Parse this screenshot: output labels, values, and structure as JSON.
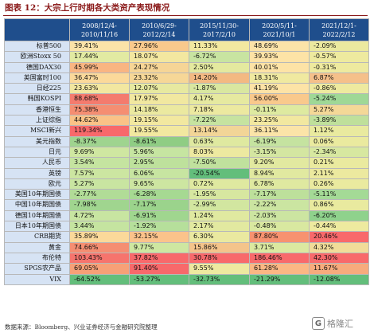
{
  "title": "图表 12：大宗上行时期各大类资产表现情况",
  "source": "数据来源：Bloomberg、兴业证券经济与金融研究院整理",
  "watermark": {
    "logo": "G",
    "text": "格隆汇"
  },
  "columns": [
    [
      "2008/12/4-",
      "2010/11/16"
    ],
    [
      "2010/6/29-",
      "2012/2/14"
    ],
    [
      "2015/11/30-",
      "2017/2/10"
    ],
    [
      "2020/5/11-",
      "2021/10/1"
    ],
    [
      "2021/12/1-",
      "2022/2/12"
    ]
  ],
  "rows": [
    {
      "label": "标普500",
      "values": [
        "39.41%",
        "27.96%",
        "11.33%",
        "48.69%",
        "-2.09%"
      ],
      "colors": [
        "#fbe3a8",
        "#f9c98c",
        "#f2e8a0",
        "#fbe3a8",
        "#ebe99f"
      ]
    },
    {
      "label": "欧洲Stoxx 50",
      "values": [
        "17.44%",
        "18.07%",
        "-6.72%",
        "39.93%",
        "-0.57%"
      ],
      "colors": [
        "#e2eaa2",
        "#f3e7a0",
        "#c8e4a1",
        "#fde3a6",
        "#eeea9f"
      ]
    },
    {
      "label": "德国DAX30",
      "values": [
        "45.99%",
        "24.27%",
        "2.50%",
        "40.01%",
        "-0.31%"
      ],
      "colors": [
        "#f9b582",
        "#f6d596",
        "#e4e99f",
        "#fde3a6",
        "#eeea9f"
      ]
    },
    {
      "label": "英国富时100",
      "values": [
        "36.47%",
        "23.32%",
        "14.20%",
        "18.31%",
        "6.87%"
      ],
      "colors": [
        "#fbd99a",
        "#f6d797",
        "#f3b982",
        "#f0e9a0",
        "#f5c08a"
      ]
    },
    {
      "label": "日经225",
      "values": [
        "23.63%",
        "12.07%",
        "-1.87%",
        "41.19%",
        "-0.86%"
      ],
      "colors": [
        "#f2e7a0",
        "#e7e9a0",
        "#d9e7a0",
        "#fde3a6",
        "#eeea9f"
      ]
    },
    {
      "label": "韩国KOSPI",
      "values": [
        "88.68%",
        "17.97%",
        "4.17%",
        "56.00%",
        "-5.24%"
      ],
      "colors": [
        "#f47b6e",
        "#f1e8a0",
        "#e6e9a0",
        "#f9c98c",
        "#9fd896"
      ]
    },
    {
      "label": "香港恒生",
      "values": [
        "75.38%",
        "14.18%",
        "7.18%",
        "-0.11%",
        "5.27%"
      ],
      "colors": [
        "#f58e72",
        "#ebe9a0",
        "#ece9a0",
        "#deeaa0",
        "#f4d897"
      ]
    },
    {
      "label": "上证综指",
      "values": [
        "44.62%",
        "19.15%",
        "-7.22%",
        "23.25%",
        "-3.89%"
      ],
      "colors": [
        "#fac287",
        "#f2e8a0",
        "#c6e3a0",
        "#f2e8a0",
        "#bfe09b"
      ]
    },
    {
      "label": "MSCI新兴",
      "values": [
        "119.34%",
        "19.55%",
        "13.14%",
        "36.11%",
        "1.12%"
      ],
      "colors": [
        "#f8696b",
        "#f2e8a0",
        "#f2d597",
        "#fbe4a8",
        "#e9ea9f"
      ]
    },
    {
      "label": "美元指数",
      "values": [
        "-8.37%",
        "-8.61%",
        "0.63%",
        "-6.19%",
        "0.06%"
      ],
      "colors": [
        "#9fd48f",
        "#8fcd84",
        "#dfe9a0",
        "#c5e3a0",
        "#eaea9f"
      ]
    },
    {
      "label": "日元",
      "values": [
        "9.69%",
        "5.96%",
        "8.03%",
        "-3.15%",
        "-2.34%"
      ],
      "colors": [
        "#cfe7a1",
        "#c6e5a1",
        "#ede9a0",
        "#d4e6a1",
        "#d7e8a0"
      ]
    },
    {
      "label": "人民币",
      "values": [
        "3.54%",
        "2.95%",
        "-7.50%",
        "9.20%",
        "0.21%"
      ],
      "colors": [
        "#c5e4a0",
        "#bee19c",
        "#c0e19d",
        "#e2e9a0",
        "#eaea9f"
      ]
    },
    {
      "label": "英镑",
      "values": [
        "7.57%",
        "6.06%",
        "-20.54%",
        "8.94%",
        "2.11%"
      ],
      "colors": [
        "#cce6a1",
        "#c7e5a1",
        "#63be7b",
        "#e1e9a0",
        "#ece99f"
      ]
    },
    {
      "label": "欧元",
      "values": [
        "5.27%",
        "9.65%",
        "0.72%",
        "6.78%",
        "0.26%"
      ],
      "colors": [
        "#c9e5a1",
        "#cde6a1",
        "#dfe9a0",
        "#dfe9a0",
        "#eaea9f"
      ]
    },
    {
      "label": "美国10年期国债",
      "values": [
        "-2.77%",
        "-6.28%",
        "-1.95%",
        "-7.17%",
        "-5.11%"
      ],
      "colors": [
        "#b1dc97",
        "#a6d992",
        "#d7e7a0",
        "#bde09b",
        "#a4da96"
      ]
    },
    {
      "label": "中国10年期国债",
      "values": [
        "-7.98%",
        "-7.17%",
        "-2.99%",
        "-2.22%",
        "0.86%"
      ],
      "colors": [
        "#a0d58f",
        "#9bd38c",
        "#d2e6a0",
        "#cbe5a1",
        "#e9ea9f"
      ]
    },
    {
      "label": "德国10年期国债",
      "values": [
        "4.72%",
        "-6.91%",
        "1.24%",
        "-2.03%",
        "-6.20%"
      ],
      "colors": [
        "#c8e5a1",
        "#a0d68f",
        "#e0e9a0",
        "#cce5a1",
        "#8fd28c"
      ]
    },
    {
      "label": "日本10年期国债",
      "values": [
        "3.44%",
        "-1.92%",
        "2.17%",
        "-0.48%",
        "-0.44%"
      ],
      "colors": [
        "#c5e4a0",
        "#b6df9b",
        "#e2e9a0",
        "#d9e8a0",
        "#eeea9f"
      ]
    },
    {
      "label": "CRB期货",
      "values": [
        "35.89%",
        "32.15%",
        "6.30%",
        "87.80%",
        "20.46%"
      ],
      "colors": [
        "#fbd99a",
        "#fbc38b",
        "#eae9a0",
        "#f79270",
        "#f8696b"
      ]
    },
    {
      "label": "黄金",
      "values": [
        "74.66%",
        "9.77%",
        "15.86%",
        "3.71%",
        "4.32%"
      ],
      "colors": [
        "#f58e72",
        "#cee7a1",
        "#f4c48b",
        "#dbe9a0",
        "#f1dc99"
      ]
    },
    {
      "label": "布伦特",
      "values": [
        "103.43%",
        "37.82%",
        "30.78%",
        "186.46%",
        "42.30%"
      ],
      "colors": [
        "#f6746d",
        "#f8696b",
        "#f8696b",
        "#f8696b",
        "#f8696b"
      ]
    },
    {
      "label": "SPGS农产品",
      "values": [
        "69.05%",
        "91.40%",
        "9.55%",
        "61.28%",
        "11.67%"
      ],
      "colors": [
        "#f7a077",
        "#f8696b",
        "#eee9a0",
        "#fbb784",
        "#f7ab7d"
      ]
    },
    {
      "label": "VIX",
      "values": [
        "-64.52%",
        "-53.27%",
        "-32.73%",
        "-21.29%",
        "-12.08%"
      ],
      "colors": [
        "#63be7b",
        "#63be7b",
        "#63be7b",
        "#63be7b",
        "#63be7b"
      ]
    }
  ]
}
